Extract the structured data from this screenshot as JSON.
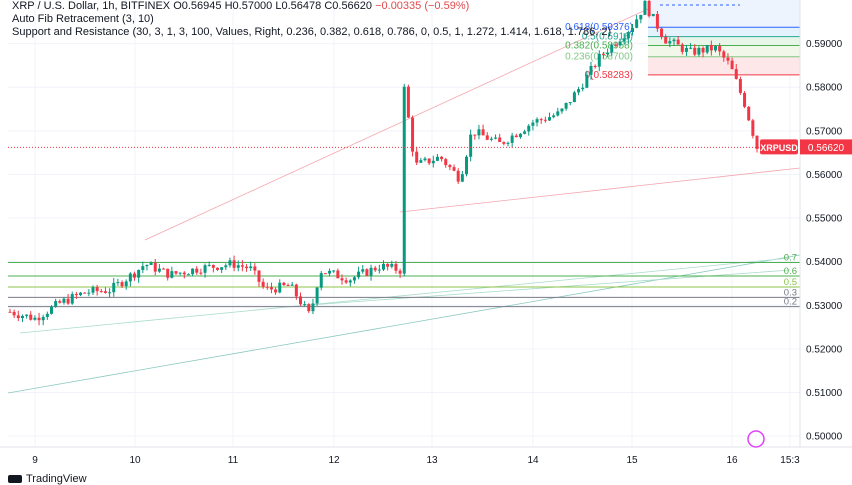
{
  "legend": {
    "symbol_line": "XRP / U.S. Dollar, 1h, BITFINEX",
    "open_label": "O",
    "open": "0.56945",
    "high_label": "H",
    "high": "0.57000",
    "low_label": "L",
    "low": "0.56478",
    "close_label": "C",
    "close": "0.56620",
    "change": "−0.00335 (−0.59%)",
    "indicator_1": "Auto Fib Retracement (3, 10)",
    "indicator_2": "Support and Resistance (30, 3, 1, 3, 100, Values, Right, 0.236, 0.382, 0.618, 0.786, 0, 0.5, 1, 1.272, 1.414, 1.618, 1.786, 2)"
  },
  "brand": {
    "name": "TradingView",
    "logo_icon": "tradingview-logo-icon"
  },
  "price_badge": {
    "label": "XRPUSD",
    "value": "0.56620",
    "color": "#f23645"
  },
  "colors": {
    "up": "#089981",
    "down": "#f23645",
    "grid": "#f0f3fa"
  },
  "chart_data": {
    "type": "candlestick",
    "x_ticks": [
      "9",
      "10",
      "11",
      "12",
      "13",
      "14",
      "15",
      "16",
      "15:3"
    ],
    "y_ticks": [
      "0.59000",
      "0.58000",
      "0.57000",
      "0.56000",
      "0.55000",
      "0.54000",
      "0.53000",
      "0.52000",
      "0.51000",
      "0.50000"
    ],
    "ylim": [
      0.4975,
      0.6
    ],
    "last_price": 0.5662,
    "fib_levels": [
      {
        "label": "0.618(0.59376)",
        "value": 0.59376
      },
      {
        "label": "0.5(0.5916)",
        "value": 0.5916
      },
      {
        "label": "0.382(0.58958)",
        "value": 0.58958
      },
      {
        "label": "0.236(0.58700)",
        "value": 0.587
      },
      {
        "label": "0(0.58283)",
        "value": 0.58283
      }
    ],
    "support_resistance_levels": [
      {
        "label": "0.7",
        "value": 0.5398
      },
      {
        "label": "0.6",
        "value": 0.5367
      },
      {
        "label": "0.5",
        "value": 0.5342
      },
      {
        "label": "0.3",
        "value": 0.5318
      },
      {
        "label": "0.2",
        "value": 0.5297
      }
    ],
    "candles_approx": [
      {
        "day": "9",
        "close": 0.528
      },
      {
        "day": "10",
        "close": 0.54
      },
      {
        "day": "11",
        "close": 0.536
      },
      {
        "day": "12",
        "close": 0.539
      },
      {
        "day": "13",
        "close": 0.563
      },
      {
        "day": "14",
        "close": 0.575
      },
      {
        "day": "15",
        "close": 0.598
      },
      {
        "day": "16",
        "close": 0.566
      }
    ]
  }
}
